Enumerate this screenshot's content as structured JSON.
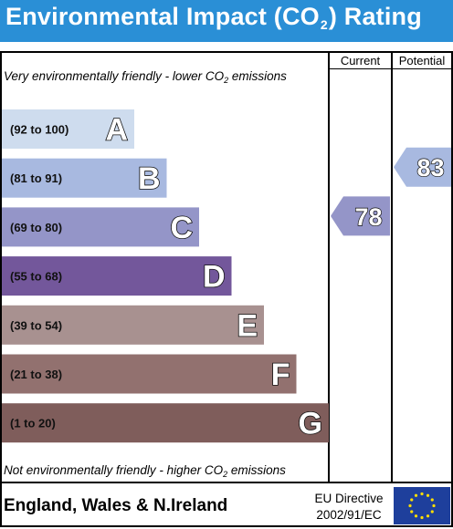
{
  "header": {
    "title_part1": "Environmental Impact (CO",
    "title_sub": "2",
    "title_part2": ") Rating"
  },
  "columns": {
    "current": "Current",
    "potential": "Potential"
  },
  "notes": {
    "top_before": "Very environmentally friendly - lower CO",
    "top_sub": "2",
    "top_after": " emissions",
    "bottom_before": "Not environmentally friendly - higher CO",
    "bottom_sub": "2",
    "bottom_after": " emissions"
  },
  "footer": {
    "region": "England, Wales & N.Ireland",
    "directive_line1": "EU Directive",
    "directive_line2": "2002/91/EC"
  },
  "colors": {
    "header": "#2a8fd6",
    "flag": "#1e3f9c",
    "star": "#ffde00"
  },
  "chart_data": {
    "type": "bar",
    "title": "Environmental Impact (CO2) Rating",
    "bands": [
      {
        "letter": "A",
        "range": "(92 to 100)",
        "color": "#cedcee"
      },
      {
        "letter": "B",
        "range": "(81 to 91)",
        "color": "#a8b9e0"
      },
      {
        "letter": "C",
        "range": "(69 to 80)",
        "color": "#9495c8"
      },
      {
        "letter": "D",
        "range": "(55 to 68)",
        "color": "#73579b"
      },
      {
        "letter": "E",
        "range": "(39 to 54)",
        "color": "#a89190"
      },
      {
        "letter": "F",
        "range": "(21 to 38)",
        "color": "#92716f"
      },
      {
        "letter": "G",
        "range": "(1 to 20)",
        "color": "#7f5d5b"
      }
    ],
    "current": {
      "value": 78,
      "band": "C",
      "color": "#9495c8"
    },
    "potential": {
      "value": 83,
      "band": "B",
      "color": "#a8b9e0"
    }
  }
}
